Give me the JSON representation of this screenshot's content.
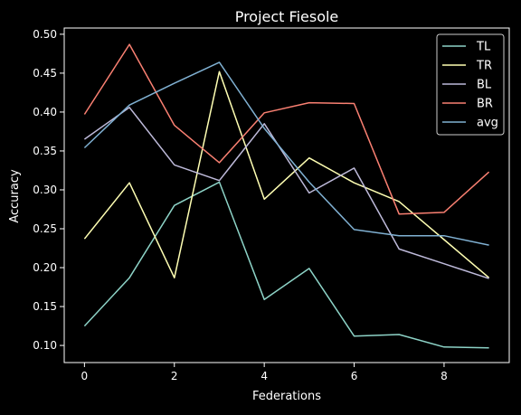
{
  "chart_data": {
    "type": "line",
    "title": "Project Fiesole",
    "xlabel": "Federations",
    "ylabel": "Accuracy",
    "x": [
      0,
      1,
      2,
      3,
      4,
      5,
      6,
      7,
      8,
      9
    ],
    "xlim": [
      -0.45,
      9.45
    ],
    "ylim": [
      0.078,
      0.508
    ],
    "xticks": [
      0,
      2,
      4,
      6,
      8
    ],
    "yticks": [
      0.1,
      0.15,
      0.2,
      0.25,
      0.3,
      0.35,
      0.4,
      0.45,
      0.5
    ],
    "grid": false,
    "legend_position": "top-right",
    "background": "#000000",
    "series": [
      {
        "name": "TL",
        "color": "#8dd3c7",
        "values": [
          0.125,
          0.187,
          0.28,
          0.31,
          0.159,
          0.199,
          0.112,
          0.114,
          0.098,
          0.097
        ]
      },
      {
        "name": "TR",
        "color": "#ffffb3",
        "values": [
          0.237,
          0.309,
          0.187,
          0.452,
          0.288,
          0.341,
          0.309,
          0.285,
          0.236,
          0.187
        ]
      },
      {
        "name": "BL",
        "color": "#bebada",
        "values": [
          0.365,
          0.406,
          0.332,
          0.312,
          0.385,
          0.296,
          0.328,
          0.224,
          0.205,
          0.186
        ]
      },
      {
        "name": "BR",
        "color": "#fa8072",
        "values": [
          0.397,
          0.487,
          0.383,
          0.335,
          0.399,
          0.412,
          0.411,
          0.269,
          0.271,
          0.323
        ]
      },
      {
        "name": "avg",
        "color": "#80b1d3",
        "values": [
          0.354,
          0.409,
          0.437,
          0.464,
          0.379,
          0.31,
          0.249,
          0.241,
          0.241,
          0.229
        ]
      }
    ]
  }
}
